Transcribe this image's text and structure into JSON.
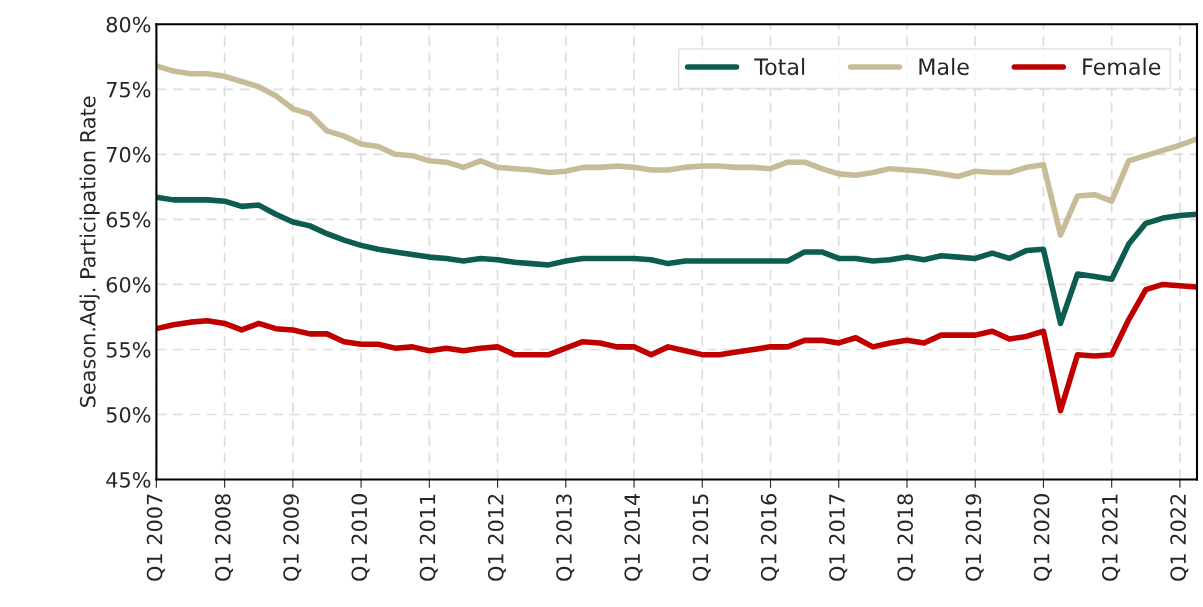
{
  "chart_data": {
    "type": "line",
    "ylabel": "Season.Adj. Participation Rate",
    "categories": [
      "Q1 2007",
      null,
      null,
      null,
      "Q1 2008",
      null,
      null,
      null,
      "Q1 2009",
      null,
      null,
      null,
      "Q1 2010",
      null,
      null,
      null,
      "Q1 2011",
      null,
      null,
      null,
      "Q1 2012",
      null,
      null,
      null,
      "Q1 2013",
      null,
      null,
      null,
      "Q1 2014",
      null,
      null,
      null,
      "Q1 2015",
      null,
      null,
      null,
      "Q1 2016",
      null,
      null,
      null,
      "Q1 2017",
      null,
      null,
      null,
      "Q1 2018",
      null,
      null,
      null,
      "Q1 2019",
      null,
      null,
      null,
      "Q1 2020",
      null,
      null,
      null,
      "Q1 2021",
      null,
      null,
      null,
      "Q1 2022",
      null
    ],
    "series": [
      {
        "name": "Total",
        "color": "#0d5c52",
        "values": [
          66.7,
          66.5,
          66.5,
          66.5,
          66.4,
          66.0,
          66.1,
          65.4,
          64.8,
          64.5,
          63.9,
          63.4,
          63.0,
          62.7,
          62.5,
          62.3,
          62.1,
          62.0,
          61.8,
          62.0,
          61.9,
          61.7,
          61.6,
          61.5,
          61.8,
          62.0,
          62.0,
          62.0,
          62.0,
          61.9,
          61.6,
          61.8,
          61.8,
          61.8,
          61.8,
          61.8,
          61.8,
          61.8,
          62.5,
          62.5,
          62.0,
          62.0,
          61.8,
          61.9,
          62.1,
          61.9,
          62.2,
          62.1,
          62.0,
          62.4,
          62.0,
          62.6,
          62.7,
          57.0,
          60.8,
          60.6,
          60.4,
          63.1,
          64.7,
          65.1,
          65.3,
          65.4
        ]
      },
      {
        "name": "Male",
        "color": "#c8bc98",
        "values": [
          76.8,
          76.4,
          76.2,
          76.2,
          76.0,
          75.6,
          75.2,
          74.5,
          73.5,
          73.1,
          71.8,
          71.4,
          70.8,
          70.6,
          70.0,
          69.9,
          69.5,
          69.4,
          69.0,
          69.5,
          69.0,
          68.9,
          68.8,
          68.6,
          68.7,
          69.0,
          69.0,
          69.1,
          69.0,
          68.8,
          68.8,
          69.0,
          69.1,
          69.1,
          69.0,
          69.0,
          68.9,
          69.4,
          69.4,
          68.9,
          68.5,
          68.4,
          68.6,
          68.9,
          68.8,
          68.7,
          68.5,
          68.3,
          68.7,
          68.6,
          68.6,
          69.0,
          69.2,
          63.8,
          66.8,
          66.9,
          66.4,
          69.5,
          69.9,
          70.3,
          70.7,
          71.2
        ]
      },
      {
        "name": "Female",
        "color": "#c00000",
        "values": [
          56.6,
          56.9,
          57.1,
          57.2,
          57.0,
          56.5,
          57.0,
          56.6,
          56.5,
          56.2,
          56.2,
          55.6,
          55.4,
          55.4,
          55.1,
          55.2,
          54.9,
          55.1,
          54.9,
          55.1,
          55.2,
          54.6,
          54.6,
          54.6,
          55.1,
          55.6,
          55.5,
          55.2,
          55.2,
          54.6,
          55.2,
          54.9,
          54.6,
          54.6,
          54.8,
          55.0,
          55.2,
          55.2,
          55.7,
          55.7,
          55.5,
          55.9,
          55.2,
          55.5,
          55.7,
          55.5,
          56.1,
          56.1,
          56.1,
          56.4,
          55.8,
          56.0,
          56.4,
          50.3,
          54.6,
          54.5,
          54.6,
          57.3,
          59.6,
          60.0,
          59.9,
          59.8
        ]
      }
    ],
    "ylim": [
      45,
      80
    ],
    "yticks": [
      {
        "value": 45,
        "label": "45%"
      },
      {
        "value": 50,
        "label": "50%"
      },
      {
        "value": 55,
        "label": "55%"
      },
      {
        "value": 60,
        "label": "60%"
      },
      {
        "value": 65,
        "label": "65%"
      },
      {
        "value": 70,
        "label": "70%"
      },
      {
        "value": 75,
        "label": "75%"
      },
      {
        "value": 80,
        "label": "80%"
      }
    ],
    "grid": true,
    "legend": "top right",
    "marker": "none",
    "line_style": "solid"
  }
}
